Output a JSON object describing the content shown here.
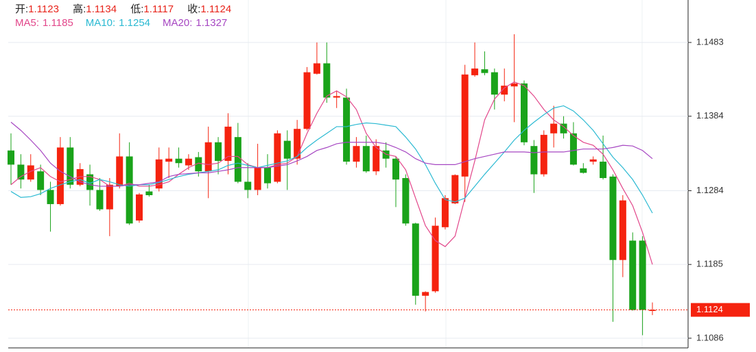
{
  "chart_data": {
    "type": "candlestick",
    "header": {
      "open_label": "开:",
      "high_label": "高:",
      "low_label": "低:",
      "close_label": "收:"
    },
    "up_color": "#f5230f",
    "down_color": "#1aa31a",
    "ylim": [
      1.1073,
      1.154
    ],
    "yticks": [
      1.1086,
      1.1185,
      1.1284,
      1.1384,
      1.1483
    ],
    "grid": true,
    "open": [
      1.1338,
      1.1319,
      1.1299,
      1.131,
      1.1285,
      1.1266,
      1.1342,
      1.1292,
      1.1306,
      1.1285,
      1.1259,
      1.129,
      1.133,
      1.1244,
      1.1283,
      1.1287,
      1.1323,
      1.1327,
      1.1318,
      1.1329,
      1.131,
      1.1349,
      1.1324,
      1.1356,
      1.1296,
      1.1285,
      1.1315,
      1.1296,
      1.1351,
      1.1327,
      1.1367,
      1.1441,
      1.1455,
      1.1409,
      1.1409,
      1.1323,
      1.1344,
      1.131,
      1.1338,
      1.1327,
      1.1301,
      1.124,
      1.1143,
      1.1149,
      1.1235,
      1.1267,
      1.1303,
      1.1439,
      1.1447,
      1.1443,
      1.1413,
      1.1424,
      1.1428,
      1.1344,
      1.1306,
      1.1361,
      1.1374,
      1.1361,
      1.1314,
      1.1323,
      1.1323,
      1.1303,
      1.1191,
      1.1217,
      1.1217,
      1.1123
    ],
    "high": [
      1.1361,
      1.1333,
      1.1333,
      1.1319,
      1.1296,
      1.1356,
      1.1356,
      1.1321,
      1.1319,
      1.1301,
      1.1301,
      1.1361,
      1.1349,
      1.1281,
      1.1292,
      1.1342,
      1.1342,
      1.1342,
      1.1333,
      1.1336,
      1.137,
      1.1356,
      1.1388,
      1.1375,
      1.1321,
      1.1347,
      1.1333,
      1.1365,
      1.1365,
      1.1379,
      1.145,
      1.1483,
      1.1483,
      1.1418,
      1.1421,
      1.1356,
      1.1358,
      1.1353,
      1.1349,
      1.133,
      1.1306,
      1.1241,
      1.1149,
      1.1248,
      1.1278,
      1.1306,
      1.1453,
      1.1483,
      1.1471,
      1.1448,
      1.1448,
      1.1494,
      1.1432,
      1.1352,
      1.1365,
      1.1398,
      1.1384,
      1.1376,
      1.1321,
      1.133,
      1.1358,
      1.1306,
      1.1278,
      1.1228,
      1.1223,
      1.1134
    ],
    "low": [
      1.1292,
      1.1287,
      1.1296,
      1.1278,
      1.1229,
      1.1264,
      1.1287,
      1.129,
      1.1264,
      1.1257,
      1.1223,
      1.1287,
      1.1238,
      1.1241,
      1.1276,
      1.1283,
      1.1301,
      1.1315,
      1.1312,
      1.1303,
      1.1274,
      1.1306,
      1.1306,
      1.1294,
      1.1274,
      1.1278,
      1.1287,
      1.1294,
      1.1285,
      1.1319,
      1.1365,
      1.144,
      1.1402,
      1.1395,
      1.1319,
      1.1315,
      1.1308,
      1.1305,
      1.1315,
      1.1262,
      1.1237,
      1.1131,
      1.1122,
      1.1147,
      1.1232,
      1.1266,
      1.1269,
      1.1437,
      1.1439,
      1.1393,
      1.1404,
      1.1376,
      1.1345,
      1.1281,
      1.1303,
      1.1342,
      1.1354,
      1.1318,
      1.1307,
      1.1319,
      1.1299,
      1.1108,
      1.1168,
      1.1123,
      1.109,
      1.1117
    ],
    "close": [
      1.1319,
      1.1299,
      1.1318,
      1.1285,
      1.1266,
      1.1342,
      1.1292,
      1.1313,
      1.1285,
      1.1259,
      1.1292,
      1.133,
      1.124,
      1.1279,
      1.1278,
      1.1326,
      1.1327,
      1.1321,
      1.1327,
      1.131,
      1.1349,
      1.1324,
      1.137,
      1.1296,
      1.1285,
      1.1315,
      1.1294,
      1.1361,
      1.1327,
      1.1367,
      1.1443,
      1.1455,
      1.1409,
      1.1411,
      1.1323,
      1.1344,
      1.131,
      1.1344,
      1.1327,
      1.1299,
      1.124,
      1.1143,
      1.1148,
      1.1237,
      1.1274,
      1.1305,
      1.144,
      1.1448,
      1.1442,
      1.1413,
      1.1425,
      1.1428,
      1.1349,
      1.1306,
      1.1359,
      1.1374,
      1.1361,
      1.1319,
      1.1308,
      1.1326,
      1.1301,
      1.1191,
      1.1271,
      1.1124,
      1.1124,
      1.1124
    ],
    "series": [
      {
        "name": "MA5:",
        "color": "#e2468a",
        "values": [
          1.1292,
          1.1303,
          1.131,
          1.1315,
          1.1303,
          1.1296,
          1.1299,
          1.1303,
          1.1303,
          1.1299,
          1.129,
          1.129,
          1.1294,
          1.129,
          1.129,
          1.1292,
          1.1296,
          1.1306,
          1.1315,
          1.1321,
          1.1319,
          1.1321,
          1.133,
          1.133,
          1.1319,
          1.1315,
          1.1315,
          1.1319,
          1.1321,
          1.133,
          1.1361,
          1.1388,
          1.1411,
          1.1418,
          1.141,
          1.1393,
          1.1361,
          1.1342,
          1.1333,
          1.133,
          1.1312,
          1.1274,
          1.1237,
          1.1217,
          1.1209,
          1.1223,
          1.1274,
          1.1324,
          1.1379,
          1.1407,
          1.1422,
          1.143,
          1.1425,
          1.1411,
          1.1393,
          1.1379,
          1.137,
          1.1358,
          1.1349,
          1.1345,
          1.1333,
          1.1312,
          1.1287,
          1.1264,
          1.1228,
          1.1185
        ]
      },
      {
        "name": "MA10:",
        "color": "#2ab9d2",
        "values": [
          1.1283,
          1.1275,
          1.1276,
          1.128,
          1.1287,
          1.1292,
          1.1296,
          1.1299,
          1.1294,
          1.1299,
          1.1296,
          1.1292,
          1.129,
          1.1292,
          1.1292,
          1.1295,
          1.1299,
          1.1303,
          1.1306,
          1.1308,
          1.131,
          1.1312,
          1.1318,
          1.1321,
          1.1318,
          1.1315,
          1.1318,
          1.1321,
          1.1324,
          1.133,
          1.1342,
          1.1352,
          1.1361,
          1.137,
          1.137,
          1.1373,
          1.1375,
          1.1374,
          1.1372,
          1.137,
          1.1356,
          1.134,
          1.1319,
          1.1294,
          1.1272,
          1.1269,
          1.1274,
          1.129,
          1.1306,
          1.1321,
          1.1336,
          1.1352,
          1.1365,
          1.1376,
          1.1386,
          1.1395,
          1.1398,
          1.1391,
          1.1379,
          1.1365,
          1.1347,
          1.1329,
          1.1315,
          1.1299,
          1.1278,
          1.1254
        ]
      },
      {
        "name": "MA20:",
        "color": "#a646c2",
        "values": [
          1.1376,
          1.1365,
          1.1352,
          1.1338,
          1.1321,
          1.131,
          1.1303,
          1.1296,
          1.1292,
          1.129,
          1.129,
          1.129,
          1.1292,
          1.1292,
          1.1294,
          1.1296,
          1.1303,
          1.1306,
          1.1307,
          1.1308,
          1.1308,
          1.131,
          1.1312,
          1.1315,
          1.1315,
          1.1315,
          1.1315,
          1.1317,
          1.1319,
          1.1324,
          1.133,
          1.1338,
          1.1342,
          1.1347,
          1.1349,
          1.1349,
          1.1349,
          1.1349,
          1.1347,
          1.1342,
          1.1336,
          1.1327,
          1.1321,
          1.1319,
          1.1319,
          1.1319,
          1.1323,
          1.1327,
          1.133,
          1.1333,
          1.1336,
          1.1336,
          1.1336,
          1.1335,
          1.1336,
          1.1336,
          1.1336,
          1.1338,
          1.134,
          1.134,
          1.134,
          1.1342,
          1.1345,
          1.1344,
          1.1338,
          1.1327
        ]
      }
    ]
  }
}
